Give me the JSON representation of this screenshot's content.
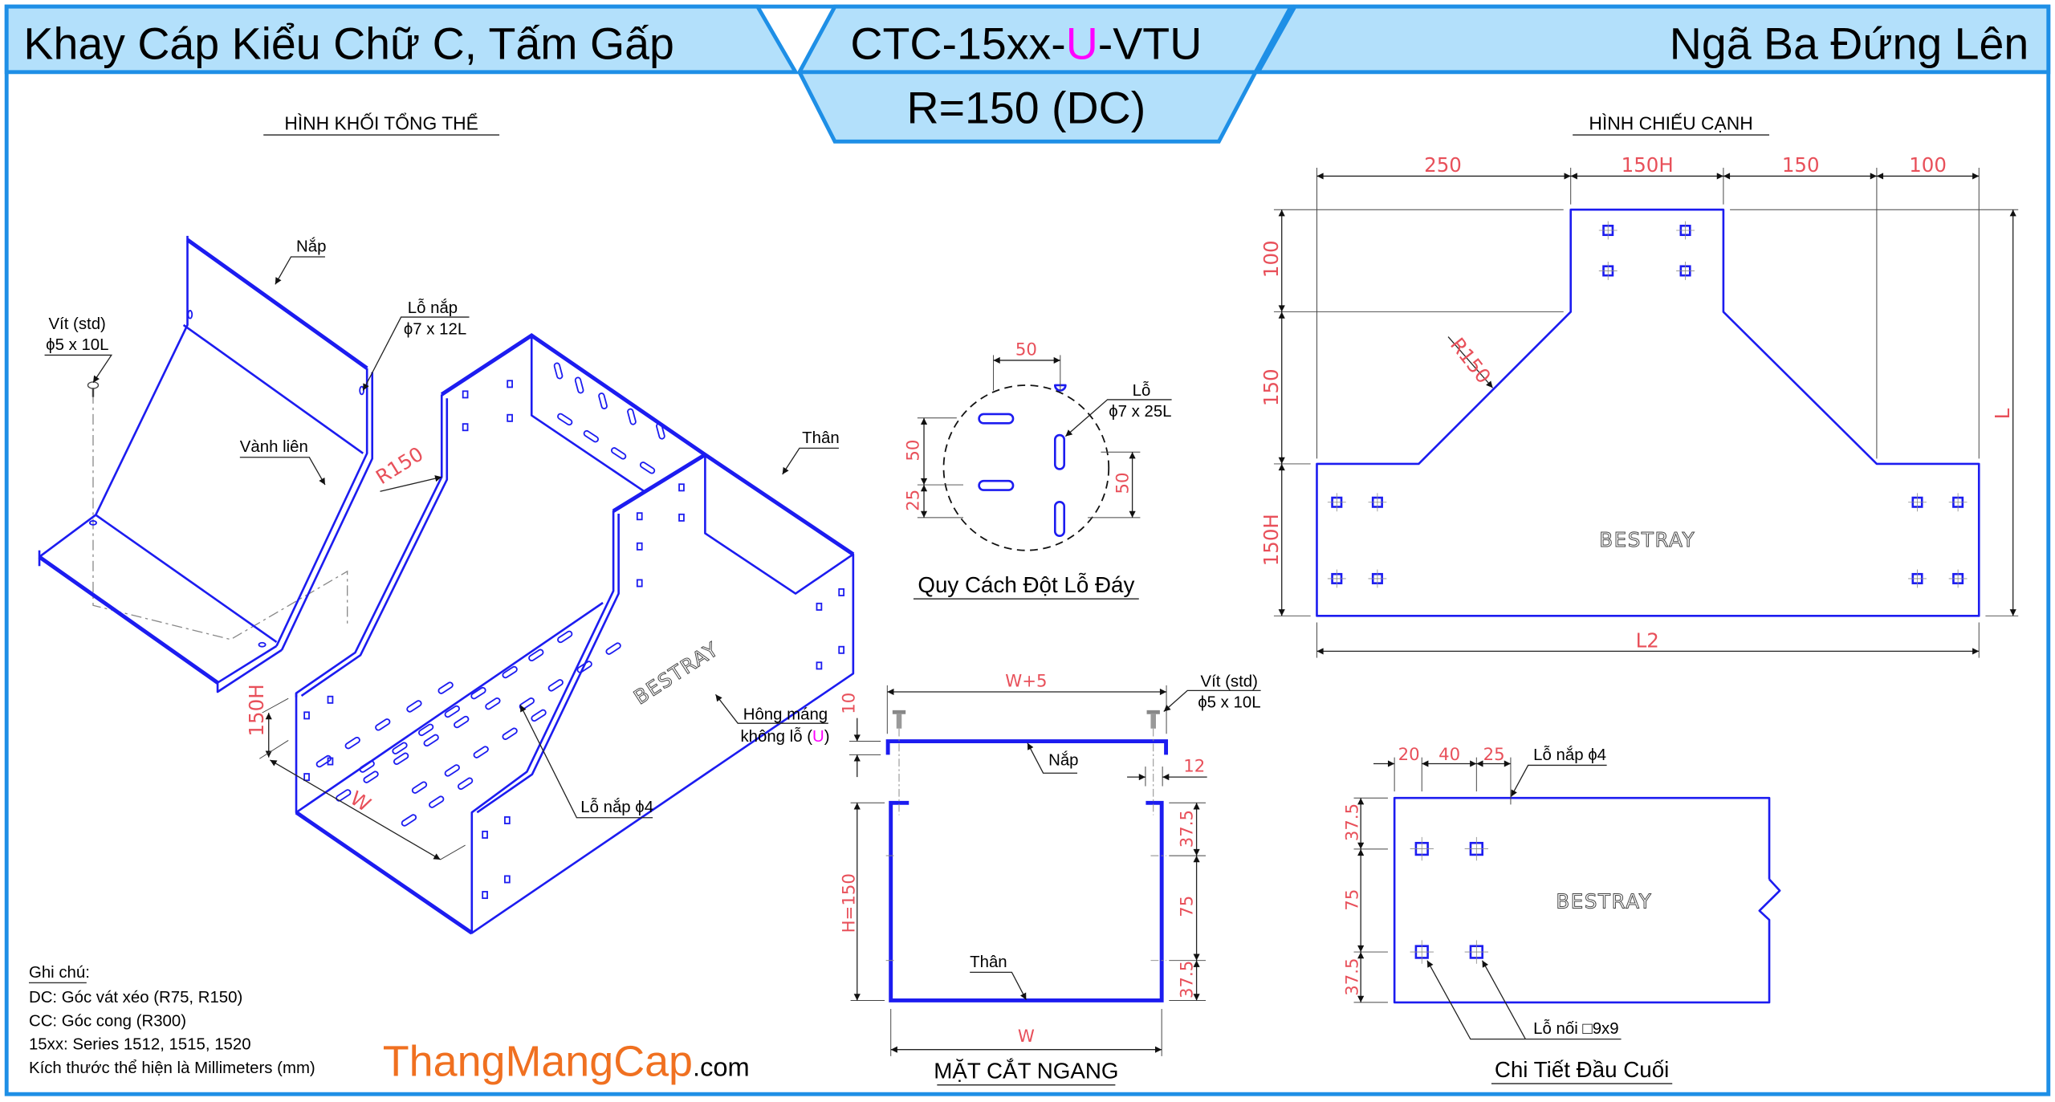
{
  "colors": {
    "header_fill": "#b3e0fb",
    "frame": "#1e8fe6",
    "part_line": "#1c1cf0",
    "dimension_text": "#e8505a",
    "highlight_u": "#ff00ff",
    "brand": "#f07020"
  },
  "header": {
    "title_left": "Khay Cáp Kiểu Chữ C, Tấm Gấp",
    "code_prefix": "CTC-15xx-",
    "code_u": "U",
    "code_suffix": "-VTU",
    "subtitle": "R=150 (DC)",
    "title_right": "Ngã Ba Đứng Lên"
  },
  "isometric": {
    "title": "HÌNH KHỐI TỔNG THỂ",
    "labels": {
      "nap": "Nắp",
      "vit_line1": "Vít (std)",
      "vit_line2": "ϕ5 x 10L",
      "lo_nap_line1": "Lỗ nắp",
      "lo_nap_line2": "ϕ7 x 12L",
      "vanh_lien": "Vành liên",
      "than": "Thân",
      "hong_mang": "Hông máng",
      "khong_lo_prefix": "không lỗ (",
      "khong_lo_u": "U",
      "khong_lo_suffix": ")",
      "lo_nap_4": "Lỗ nắp ϕ4",
      "logo": "BESTRAY"
    },
    "dims": {
      "r150": "R150",
      "h150": "150H",
      "w": "W"
    }
  },
  "hole_pattern": {
    "title": "Quy Cách Đột Lỗ Đáy",
    "dim_top": "50",
    "dim_left_upper": "50",
    "dim_left_lower": "25",
    "dim_right": "50",
    "label_line1": "Lỗ",
    "label_line2": "ϕ7 x 25L"
  },
  "cross_section": {
    "title": "MẶT CẮT NGANG",
    "dim_w_plus_5": "W+5",
    "dim_10": "10",
    "dim_12": "12",
    "dim_h": "H=150",
    "dim_right": [
      "37.5",
      "75",
      "37.5"
    ],
    "dim_w": "W",
    "nap": "Nắp",
    "than": "Thân",
    "vit_line1": "Vít (std)",
    "vit_line2": "ϕ5 x 10L"
  },
  "side_view": {
    "title": "HÌNH CHIẾU CẠNH",
    "top_dims": [
      "250",
      "150H",
      "150",
      "100"
    ],
    "left_dims": [
      "100",
      "150",
      "150H"
    ],
    "dim_l": "L",
    "dim_l2": "L2",
    "dim_r150": "R150",
    "logo": "BESTRAY"
  },
  "end_detail": {
    "title": "Chi Tiết Đầu Cuối",
    "top_dims": [
      "20",
      "40",
      "25"
    ],
    "left_dims": [
      "37.5",
      "75",
      "37.5"
    ],
    "lo_nap": "Lỗ nắp ϕ4",
    "lo_noi": "Lỗ nối □9x9",
    "logo": "BESTRAY"
  },
  "notes": {
    "heading": "Ghi chú:",
    "lines": [
      "DC: Góc vát xéo (R75, R150)",
      "CC: Góc cong (R300)",
      "15xx: Series 1512, 1515, 1520",
      "Kích thước thể hiện là Millimeters (mm)"
    ]
  },
  "brand": {
    "name": "ThangMangCap",
    "suffix": ".com"
  }
}
